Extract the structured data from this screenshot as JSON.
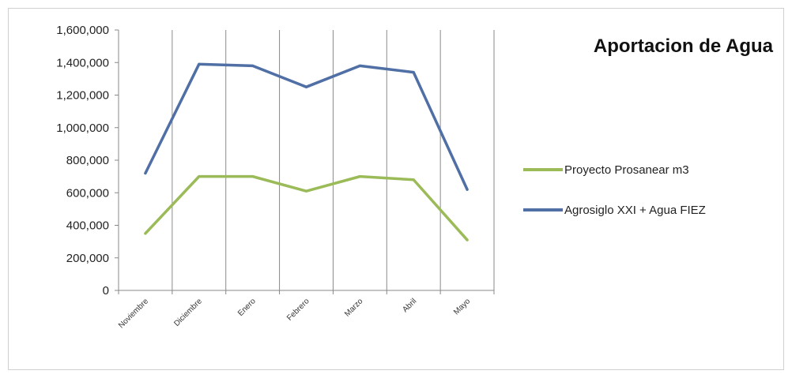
{
  "chart_data": {
    "type": "line",
    "title": "Aportacion de Agua",
    "categories": [
      "Noviembre",
      "Diciembre",
      "Enero",
      "Febrero",
      "Marzo",
      "Abril",
      "Mayo"
    ],
    "series": [
      {
        "name": "Proyecto Prosanear m3",
        "values": [
          350000,
          700000,
          700000,
          610000,
          700000,
          680000,
          310000
        ],
        "color": "#9bbb59"
      },
      {
        "name": "Agrosiglo XXI + Agua FIEZ",
        "values": [
          720000,
          1390000,
          1380000,
          1250000,
          1380000,
          1340000,
          620000
        ],
        "color": "#4f6fa5"
      }
    ],
    "y_ticks": [
      "0",
      "200,000",
      "400,000",
      "600,000",
      "800,000",
      "1,000,000",
      "1,200,000",
      "1,400,000",
      "1,600,000"
    ],
    "ylim": [
      0,
      1600000
    ],
    "grid": "vertical",
    "legend_position": "right"
  }
}
